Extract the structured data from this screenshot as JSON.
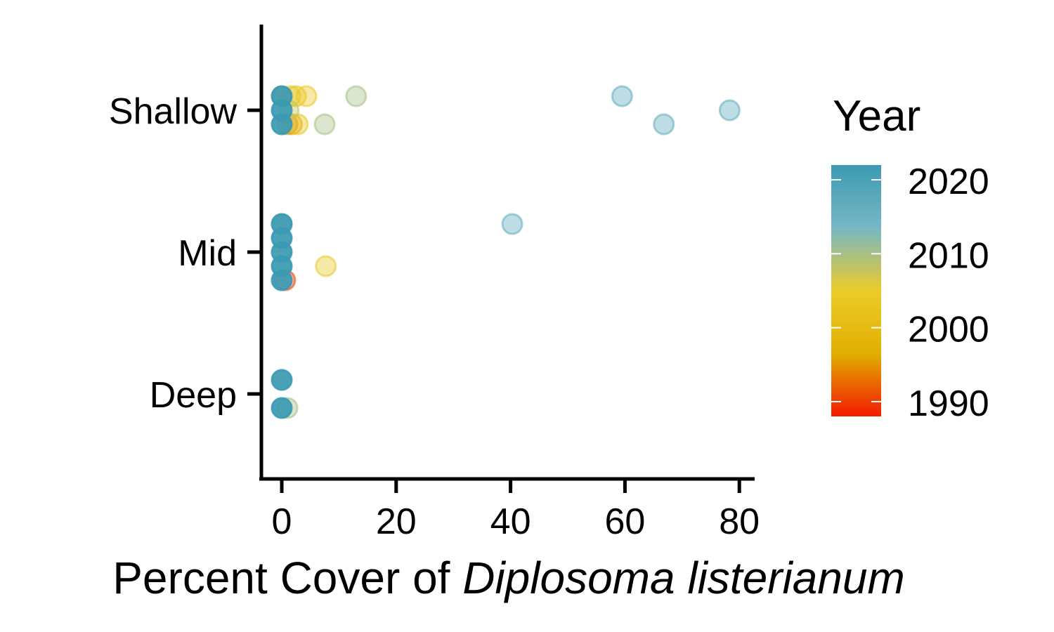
{
  "chart_data": {
    "type": "scatter",
    "title": "",
    "xlabel_plain": "Percent Cover of ",
    "xlabel_italic": "Diplosoma listerianum",
    "ylabel": "",
    "categories": [
      "Deep",
      "Mid",
      "Shallow"
    ],
    "xlim": [
      -3.7,
      82.5
    ],
    "x_ticks": [
      "0",
      "20",
      "40",
      "60",
      "80"
    ],
    "legend": {
      "title": "Year",
      "position": "right",
      "range": [
        1988,
        2022
      ],
      "ticks": [
        "1990",
        "2000",
        "2010",
        "2020"
      ],
      "colors": [
        "#F21A00",
        "#E1AF00",
        "#EBCC2A",
        "#78B7C5",
        "#3B9AB2"
      ]
    },
    "grid": false,
    "points": [
      {
        "cat": "Shallow",
        "lane": 1,
        "x": 0,
        "year": 1995
      },
      {
        "cat": "Shallow",
        "lane": 1,
        "x": 1.5,
        "year": 2003
      },
      {
        "cat": "Shallow",
        "lane": 1,
        "x": 2.5,
        "year": 2002
      },
      {
        "cat": "Shallow",
        "lane": 1,
        "x": 4.3,
        "year": 2004
      },
      {
        "cat": "Shallow",
        "lane": 1,
        "x": 13.0,
        "year": 2010
      },
      {
        "cat": "Shallow",
        "lane": 1,
        "x": 59.5,
        "year": 2017
      },
      {
        "cat": "Shallow",
        "lane": 1,
        "x": 0,
        "year": 2022
      },
      {
        "cat": "Shallow",
        "lane": 0,
        "x": 1.2,
        "year": 2008
      },
      {
        "cat": "Shallow",
        "lane": 0,
        "x": 78.3,
        "year": 2017
      },
      {
        "cat": "Shallow",
        "lane": 0,
        "x": 0,
        "year": 2022
      },
      {
        "cat": "Shallow",
        "lane": -1,
        "x": 1.0,
        "year": 1994
      },
      {
        "cat": "Shallow",
        "lane": -1,
        "x": 1.8,
        "year": 1996
      },
      {
        "cat": "Shallow",
        "lane": -1,
        "x": 2.8,
        "year": 2003
      },
      {
        "cat": "Shallow",
        "lane": -1,
        "x": 7.5,
        "year": 2010
      },
      {
        "cat": "Shallow",
        "lane": -1,
        "x": 66.8,
        "year": 2017
      },
      {
        "cat": "Shallow",
        "lane": -1,
        "x": 0,
        "year": 2022
      },
      {
        "cat": "Mid",
        "lane": 2,
        "x": 0,
        "year": 2010
      },
      {
        "cat": "Mid",
        "lane": 2,
        "x": 40.3,
        "year": 2017
      },
      {
        "cat": "Mid",
        "lane": 2,
        "x": 0,
        "year": 2022
      },
      {
        "cat": "Mid",
        "lane": 1,
        "x": 0,
        "year": 2022
      },
      {
        "cat": "Mid",
        "lane": 0,
        "x": 0,
        "year": 2022
      },
      {
        "cat": "Mid",
        "lane": -1,
        "x": 7.7,
        "year": 2004
      },
      {
        "cat": "Mid",
        "lane": -1,
        "x": 0,
        "year": 2022
      },
      {
        "cat": "Mid",
        "lane": -2,
        "x": 0.6,
        "year": 1990
      },
      {
        "cat": "Mid",
        "lane": -2,
        "x": 0,
        "year": 2022
      },
      {
        "cat": "Deep",
        "lane": 1,
        "x": 0,
        "year": 2022
      },
      {
        "cat": "Deep",
        "lane": -1,
        "x": 1.0,
        "year": 2010
      },
      {
        "cat": "Deep",
        "lane": -1,
        "x": 0,
        "year": 2022
      }
    ]
  }
}
